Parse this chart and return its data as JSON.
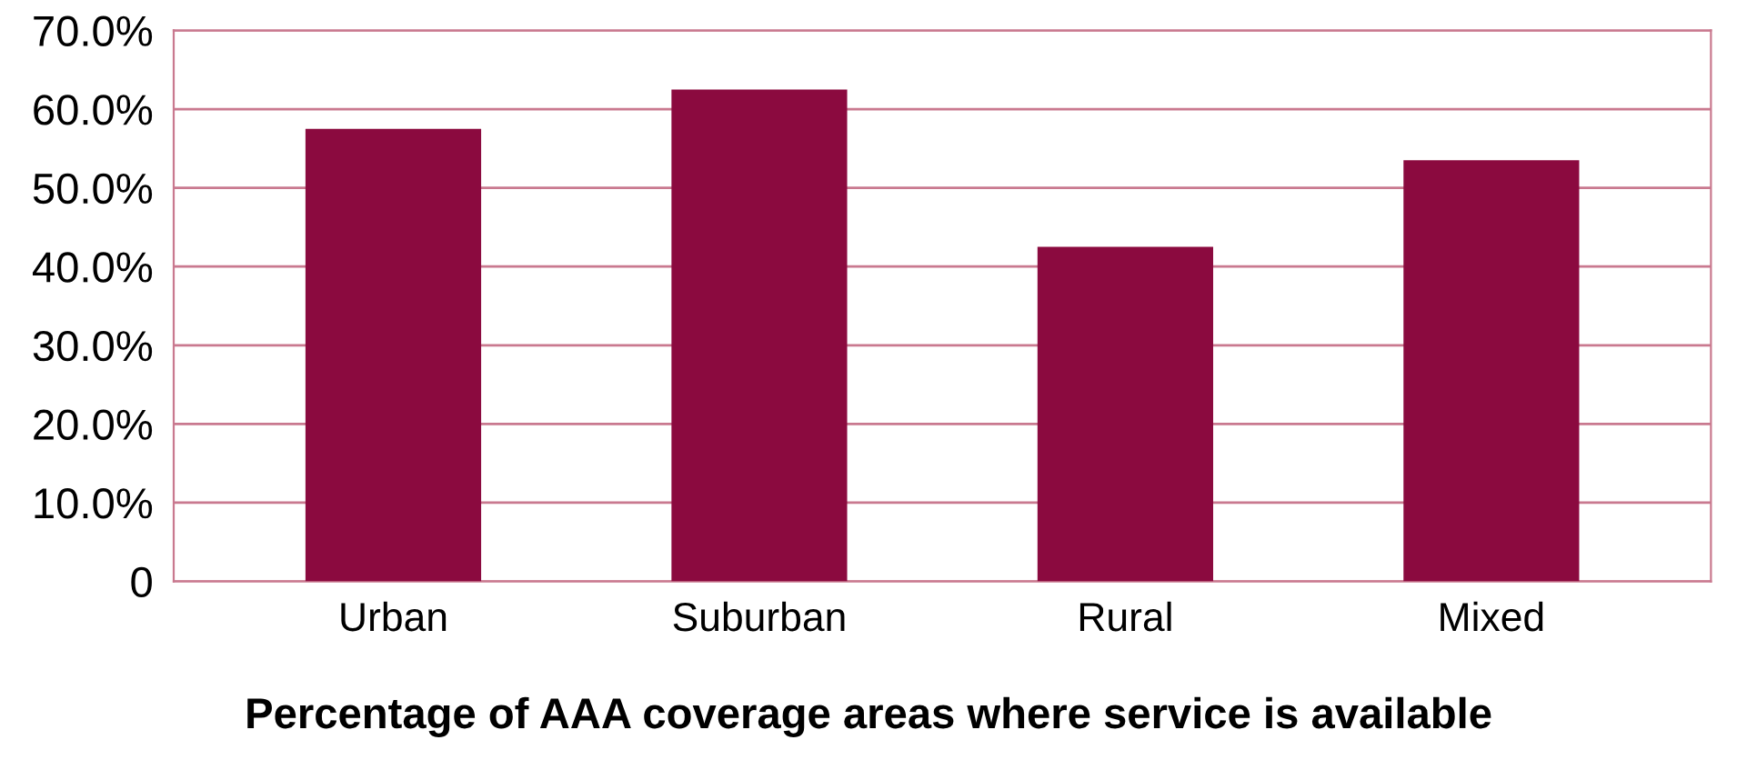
{
  "chart_data": {
    "type": "bar",
    "title": "Percentage of AAA coverage areas where service is available",
    "categories": [
      "Urban",
      "Suburban",
      "Rural",
      "Mixed"
    ],
    "values": [
      57.5,
      62.5,
      42.5,
      53.5
    ],
    "color": "#8b0a3f",
    "ylim": [
      0,
      70
    ],
    "yticks": [
      0,
      {
        "value": 10,
        "label": "10.0%"
      },
      {
        "value": 20,
        "label": "20.0%"
      },
      {
        "value": 30,
        "label": "30.0%"
      },
      {
        "value": 40,
        "label": "40.0%"
      },
      {
        "value": 50,
        "label": "50.0%"
      },
      {
        "value": 60,
        "label": "60.0%"
      },
      {
        "value": 70,
        "label": "70.0%"
      }
    ],
    "grid": "y"
  }
}
